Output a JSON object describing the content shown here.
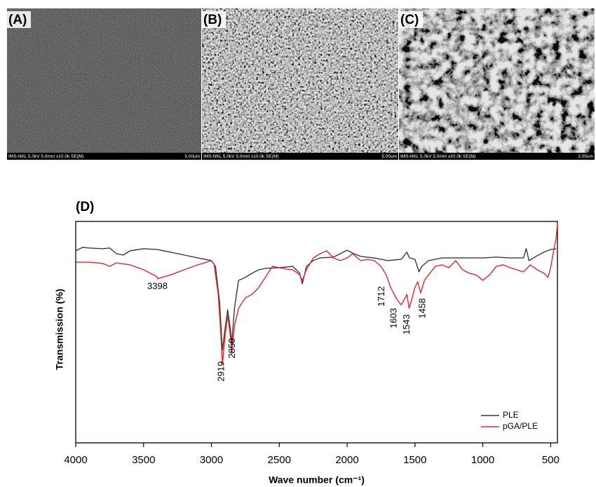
{
  "panels": [
    {
      "label": "(A)",
      "info": "IMS-NKL 5.0kV 5.0mm x10.0k SE(M)",
      "scale": "5.00um"
    },
    {
      "label": "(B)",
      "info": "IMS-NKL 5.0kV 5.0mm x10.0k SE(M)",
      "scale": "5.00um"
    },
    {
      "label": "(C)",
      "info": "IMS-NKL 5.0kV 5.0mm x20.0k SE(M)",
      "scale": "2.00um"
    }
  ],
  "chart_data": {
    "type": "line",
    "panel_label": "(D)",
    "x_label": "Wave number (cm⁻¹)",
    "y_label": "Transmission (%)",
    "xlim": [
      4000,
      450
    ],
    "ylim": [
      0,
      100
    ],
    "xticks": [
      4000,
      3500,
      3000,
      2500,
      2000,
      1500,
      1000,
      500
    ],
    "grid": false,
    "legend_position": "lower-right",
    "series": [
      {
        "name": "PLE",
        "color": "#3a3a3a",
        "x": [
          4000,
          3950,
          3900,
          3800,
          3750,
          3700,
          3650,
          3600,
          3500,
          3400,
          3300,
          3200,
          3100,
          3000,
          2970,
          2940,
          2919,
          2900,
          2880,
          2860,
          2850,
          2830,
          2800,
          2750,
          2700,
          2650,
          2600,
          2500,
          2400,
          2350,
          2330,
          2300,
          2250,
          2200,
          2100,
          2000,
          1950,
          1900,
          1800,
          1700,
          1600,
          1560,
          1540,
          1500,
          1470,
          1450,
          1400,
          1300,
          1200,
          1100,
          1000,
          900,
          800,
          700,
          680,
          660,
          600,
          550,
          500,
          460
        ],
        "values": [
          86.7,
          88.3,
          88.0,
          87.7,
          88.0,
          85.4,
          84.8,
          86.7,
          87.7,
          87.3,
          86.1,
          84.8,
          83.5,
          82.3,
          79.7,
          63.9,
          41.8,
          51.3,
          60.1,
          51.3,
          44.9,
          60.8,
          73.4,
          74.7,
          76.6,
          78.2,
          78.8,
          79.1,
          79.7,
          76.6,
          71.8,
          79.7,
          82.3,
          83.5,
          83.9,
          87.0,
          85.4,
          84.2,
          83.5,
          82.3,
          82.9,
          86.1,
          83.5,
          82.9,
          77.2,
          79.7,
          82.3,
          83.5,
          83.5,
          83.5,
          83.5,
          83.9,
          83.5,
          83.5,
          87.7,
          82.3,
          84.5,
          86.1,
          87.3,
          87.7
        ]
      },
      {
        "name": "pGA/PLE",
        "color": "#e8262a",
        "x": [
          4000,
          3900,
          3800,
          3750,
          3700,
          3600,
          3500,
          3400,
          3398,
          3300,
          3200,
          3100,
          3000,
          2980,
          2950,
          2930,
          2919,
          2900,
          2880,
          2860,
          2850,
          2830,
          2800,
          2750,
          2700,
          2650,
          2600,
          2550,
          2500,
          2450,
          2400,
          2350,
          2330,
          2300,
          2250,
          2200,
          2150,
          2100,
          2050,
          2000,
          1960,
          1900,
          1850,
          1800,
          1750,
          1712,
          1680,
          1640,
          1603,
          1580,
          1560,
          1543,
          1520,
          1500,
          1480,
          1458,
          1430,
          1400,
          1350,
          1300,
          1250,
          1200,
          1150,
          1100,
          1050,
          1000,
          950,
          900,
          850,
          800,
          750,
          700,
          650,
          600,
          550,
          520,
          500,
          480,
          460,
          450
        ],
        "values": [
          81.6,
          81.6,
          81.0,
          79.7,
          81.3,
          80.4,
          78.2,
          75.0,
          74.1,
          75.9,
          78.2,
          80.4,
          82.3,
          80.4,
          67.1,
          48.1,
          35.4,
          48.1,
          57.6,
          48.1,
          40.2,
          52.8,
          60.8,
          65.5,
          67.1,
          70.3,
          75.0,
          79.7,
          79.1,
          78.5,
          78.2,
          75.9,
          73.4,
          78.2,
          83.5,
          85.4,
          86.7,
          83.5,
          82.3,
          83.5,
          85.4,
          82.3,
          82.9,
          82.3,
          79.7,
          75.9,
          70.3,
          65.5,
          62.3,
          64.6,
          67.1,
          60.8,
          65.5,
          70.3,
          72.8,
          67.7,
          73.4,
          75.9,
          79.7,
          80.4,
          79.1,
          82.3,
          78.2,
          76.6,
          75.9,
          73.4,
          75.9,
          79.7,
          80.4,
          79.1,
          78.2,
          77.2,
          80.4,
          78.2,
          76.6,
          74.7,
          79.1,
          86.1,
          92.4,
          99.4
        ]
      }
    ],
    "annotations": [
      {
        "value": 3398,
        "label": "3398"
      },
      {
        "value": 2919,
        "label": "2919"
      },
      {
        "value": 2850,
        "label": "2850"
      },
      {
        "value": 1712,
        "label": "1712"
      },
      {
        "value": 1603,
        "label": "1603"
      },
      {
        "value": 1543,
        "label": "1543"
      },
      {
        "value": 1458,
        "label": "1458"
      }
    ]
  }
}
